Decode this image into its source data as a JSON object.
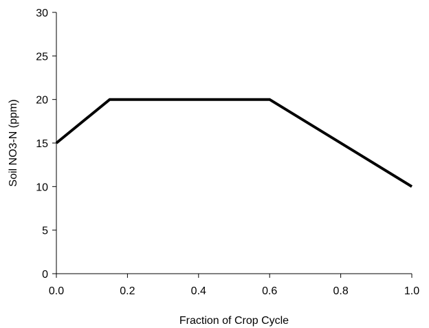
{
  "chart_data": {
    "type": "line",
    "title": "",
    "xlabel": "Fraction of Crop Cycle",
    "ylabel": "Soil NO3-N (ppm)",
    "xlim": [
      0,
      1
    ],
    "ylim": [
      0,
      30
    ],
    "xticks": [
      0.0,
      0.2,
      0.4,
      0.6,
      0.8,
      1.0
    ],
    "xtick_labels": [
      "0.0",
      "0.2",
      "0.4",
      "0.6",
      "0.8",
      "1.0"
    ],
    "yticks": [
      0,
      5,
      10,
      15,
      20,
      25,
      30
    ],
    "ytick_labels": [
      "0",
      "5",
      "10",
      "15",
      "20",
      "25",
      "30"
    ],
    "grid": false,
    "legend": "none",
    "series": [
      {
        "color": "#000000",
        "x": [
          0.0,
          0.15,
          0.6,
          1.0
        ],
        "y": [
          15,
          20,
          20,
          10
        ]
      }
    ]
  }
}
